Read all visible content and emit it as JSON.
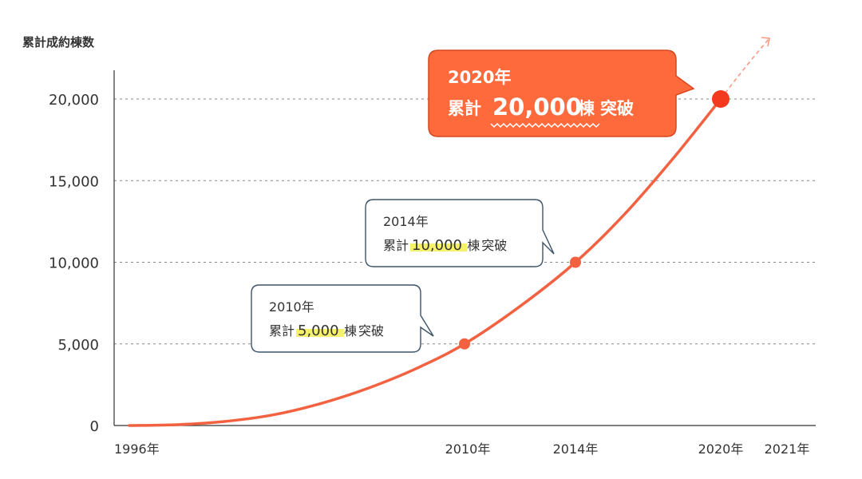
{
  "chart_data": {
    "type": "line",
    "ylabel": "累計成約棟数",
    "y_ticks": [
      "0",
      "5,000",
      "10,000",
      "15,000",
      "20,000"
    ],
    "ylim": [
      0,
      20000
    ],
    "x_ticks": [
      "1996年",
      "2010年",
      "2014年",
      "2020年",
      "2021年"
    ],
    "x_tick_years": [
      1996,
      2010,
      2014,
      2020,
      2021
    ],
    "xlim": [
      1996,
      2021
    ],
    "grid": true,
    "series": [
      {
        "x": [
          1996,
          1998,
          2000,
          2002,
          2004,
          2006,
          2008,
          2010,
          2012,
          2014,
          2016,
          2018,
          2020
        ],
        "y": [
          0,
          50,
          250,
          650,
          1350,
          2300,
          3500,
          5000,
          7300,
          10000,
          12900,
          16300,
          20000
        ]
      }
    ],
    "highlight_points": [
      {
        "x": 2010,
        "y": 5000
      },
      {
        "x": 2014,
        "y": 10000
      },
      {
        "x": 2020,
        "y": 20000
      }
    ],
    "annotations": [
      {
        "year_label": "2010年",
        "prefix": "累計",
        "number": "5,000",
        "unit": "棟",
        "suffix": "突破"
      },
      {
        "year_label": "2014年",
        "prefix": "累計",
        "number": "10,000",
        "unit": "棟",
        "suffix": "突破"
      },
      {
        "year_label": "2020年",
        "prefix": "累計",
        "number": "20,000",
        "unit": "棟",
        "suffix": "突破"
      }
    ],
    "colors": {
      "line": "#f26241",
      "accent_fill": "#ff6a3d",
      "callout_border": "#3d5368",
      "highlight": "#f5f26a",
      "grid": "#888888",
      "axis": "#333333"
    }
  }
}
